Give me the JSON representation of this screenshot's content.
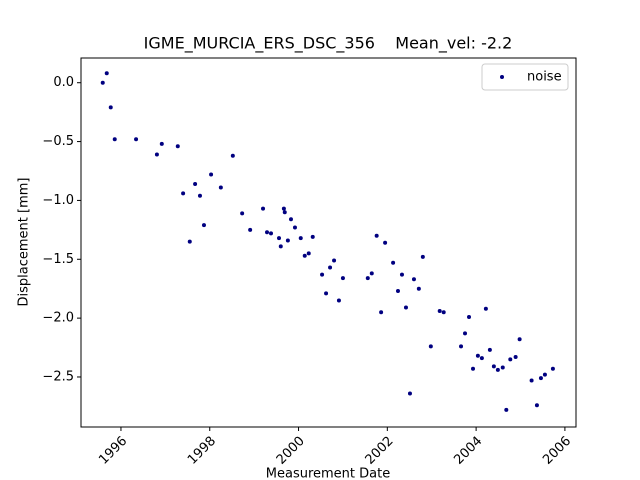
{
  "chart_data": {
    "type": "scatter",
    "title": "IGME_MURCIA_ERS_DSC_356    Mean_vel: -2.2",
    "x_label": "Measurement Date",
    "y_label": "Displacement [mm]",
    "x": [
      1995.59,
      1995.68,
      1995.77,
      1995.86,
      1996.34,
      1996.81,
      1996.92,
      1997.28,
      1997.4,
      1997.55,
      1997.67,
      1997.78,
      1997.87,
      1998.03,
      1998.25,
      1998.52,
      1998.73,
      1998.91,
      1999.2,
      1999.29,
      1999.38,
      1999.56,
      1999.6,
      1999.67,
      1999.69,
      1999.76,
      1999.83,
      1999.92,
      2000.05,
      2000.14,
      2000.23,
      2000.32,
      2000.53,
      2000.62,
      2000.71,
      2000.8,
      2000.91,
      2001.0,
      2001.56,
      2001.65,
      2001.76,
      2001.86,
      2001.95,
      2002.13,
      2002.24,
      2002.33,
      2002.42,
      2002.51,
      2002.6,
      2002.71,
      2002.8,
      2002.98,
      2003.18,
      2003.27,
      2003.66,
      2003.75,
      2003.84,
      2003.93,
      2004.04,
      2004.13,
      2004.22,
      2004.31,
      2004.4,
      2004.49,
      2004.6,
      2004.68,
      2004.77,
      2004.89,
      2004.98,
      2005.25,
      2005.37,
      2005.46,
      2005.55,
      2005.73
    ],
    "series": [
      {
        "name": "noise",
        "color": "#000080",
        "values": [
          0.0,
          0.08,
          -0.21,
          -0.48,
          -0.48,
          -0.61,
          -0.52,
          -0.54,
          -0.94,
          -1.35,
          -0.86,
          -0.96,
          -1.21,
          -0.78,
          -0.89,
          -0.62,
          -1.11,
          -1.25,
          -1.07,
          -1.27,
          -1.28,
          -1.32,
          -1.39,
          -1.07,
          -1.1,
          -1.34,
          -1.16,
          -1.23,
          -1.32,
          -1.47,
          -1.45,
          -1.31,
          -1.63,
          -1.79,
          -1.57,
          -1.51,
          -1.85,
          -1.66,
          -1.66,
          -1.62,
          -1.3,
          -1.95,
          -1.36,
          -1.53,
          -1.77,
          -1.63,
          -1.91,
          -2.64,
          -1.67,
          -1.75,
          -1.48,
          -2.24,
          -1.94,
          -1.95,
          -2.24,
          -2.13,
          -1.99,
          -2.43,
          -2.32,
          -2.34,
          -1.92,
          -2.27,
          -2.41,
          -2.44,
          -2.42,
          -2.78,
          -2.35,
          -2.33,
          -2.18,
          -2.53,
          -2.74,
          -2.51,
          -2.48,
          -2.43
        ]
      }
    ],
    "xlim": [
      1995.1,
      2006.25
    ],
    "ylim": [
      -2.925,
      0.21
    ],
    "xticks": [
      1996,
      1998,
      2000,
      2002,
      2004,
      2006
    ],
    "yticks": [
      {
        "value": 0,
        "label": "0.0"
      },
      {
        "value": -0.5,
        "label": "−0.5"
      },
      {
        "value": -1,
        "label": "−1.0"
      },
      {
        "value": -1.5,
        "label": "−1.5"
      },
      {
        "value": -2,
        "label": "−2.0"
      },
      {
        "value": -2.5,
        "label": "−2.5"
      }
    ],
    "legend_position": "upper right"
  }
}
